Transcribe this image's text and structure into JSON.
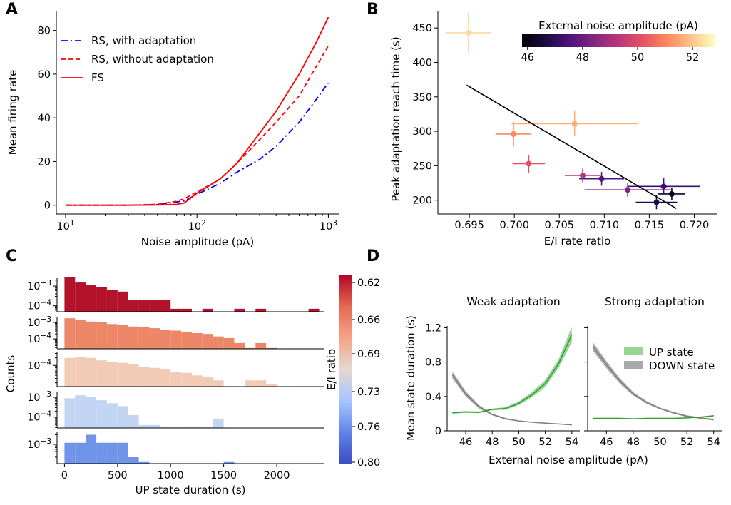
{
  "panels": {
    "A": {
      "letter": "A",
      "chart_data": {
        "type": "line",
        "xlabel": "Noise amplitude (pA)",
        "ylabel": "Mean firing rate",
        "xscale": "log",
        "xlim": [
          8.5,
          1200
        ],
        "ylim": [
          -4,
          89
        ],
        "xticks": [
          {
            "v": 10,
            "b": "10",
            "e": "1"
          },
          {
            "v": 100,
            "b": "10",
            "e": "2"
          },
          {
            "v": 1000,
            "b": "10",
            "e": "3"
          }
        ],
        "yticks": [
          0,
          20,
          40,
          60,
          80
        ],
        "legend": "upper left",
        "series": [
          {
            "name": "RS, with adaptation",
            "color": "#0000ff",
            "dash": "9 4 2 4",
            "x": [
              10,
              20,
              30,
              50,
              70,
              80,
              100,
              150,
              200,
              300,
              400,
              600,
              800,
              1000
            ],
            "y": [
              0,
              0,
              0,
              0.3,
              1.5,
              2.0,
              5.0,
              10.0,
              15.0,
              21.0,
              27.0,
              38.0,
              48.0,
              56.0
            ]
          },
          {
            "name": "RS, without adaptation",
            "color": "#ff0000",
            "dash": "6 4",
            "x": [
              10,
              20,
              30,
              50,
              70,
              80,
              100,
              150,
              200,
              300,
              400,
              600,
              800,
              1000
            ],
            "y": [
              0,
              0,
              0,
              0.4,
              1.8,
              3.0,
              6.0,
              12.0,
              19.0,
              30.0,
              38.0,
              50.0,
              63.0,
              73.0
            ]
          },
          {
            "name": "FS",
            "color": "#ff0000",
            "dash": "",
            "x": [
              10,
              20,
              30,
              50,
              70,
              80,
              100,
              150,
              200,
              300,
              400,
              600,
              800,
              1000
            ],
            "y": [
              0,
              0,
              0,
              0.1,
              0.4,
              1.0,
              5.5,
              12.0,
              19.0,
              33.0,
              43.0,
              60.0,
              74.0,
              86.0
            ]
          }
        ]
      }
    },
    "B": {
      "letter": "B",
      "chart_data": {
        "type": "scatter",
        "xlabel": "E/I rate ratio",
        "ylabel": "Peak adaptation reach time (s)",
        "xlim": [
          0.6915,
          0.7225
        ],
        "ylim": [
          180,
          475
        ],
        "xticks": [
          "0.695",
          "0.700",
          "0.705",
          "0.710",
          "0.715",
          "0.720"
        ],
        "yticks": [
          200,
          250,
          300,
          350,
          400,
          450
        ],
        "points": [
          {
            "noise": 46,
            "x": 0.7175,
            "y": 209,
            "xerr": 0.0015,
            "yerr": 9,
            "color": "#0d0422"
          },
          {
            "noise": 46.5,
            "x": 0.7158,
            "y": 197,
            "xerr": 0.0023,
            "yerr": 10,
            "color": "#1b0c41"
          },
          {
            "noise": 47,
            "x": 0.7166,
            "y": 220,
            "xerr": 0.004,
            "yerr": 12,
            "color": "#3b0f70"
          },
          {
            "noise": 48,
            "x": 0.7097,
            "y": 231,
            "xerr": 0.0025,
            "yerr": 10,
            "color": "#51127c"
          },
          {
            "noise": 48.5,
            "x": 0.7126,
            "y": 215,
            "xerr": 0.0048,
            "yerr": 10,
            "color": "#7e2482"
          },
          {
            "noise": 49,
            "x": 0.7076,
            "y": 236,
            "xerr": 0.002,
            "yerr": 10,
            "color": "#b5367a"
          },
          {
            "noise": 50,
            "x": 0.7016,
            "y": 253,
            "xerr": 0.0018,
            "yerr": 13,
            "color": "#e55064"
          },
          {
            "noise": 51,
            "x": 0.6999,
            "y": 296,
            "xerr": 0.002,
            "yerr": 18,
            "color": "#fb8861"
          },
          {
            "noise": 51.5,
            "x": 0.7067,
            "y": 311,
            "xerr": 0.007,
            "yerr": 18,
            "color": "#feb078"
          },
          {
            "noise": 52,
            "x": 0.6949,
            "y": 443,
            "xerr": 0.0025,
            "yerr": 30,
            "color": "#fcd8a0"
          }
        ],
        "fit_line": {
          "x": [
            0.6947,
            0.718
          ],
          "y": [
            367,
            188
          ],
          "color": "#000000"
        },
        "colorbar": {
          "title": "External noise amplitude (pA)",
          "ticks": [
            "46",
            "48",
            "50",
            "52"
          ],
          "range": [
            45.8,
            52.8
          ],
          "colors": [
            "#000004",
            "#1b0c41",
            "#51127c",
            "#822681",
            "#b73779",
            "#e65164",
            "#fb8861",
            "#fec287",
            "#fcfdbf"
          ]
        }
      }
    },
    "C": {
      "letter": "C",
      "chart_data": {
        "type": "bar",
        "xlabel": "UP state duration (s)",
        "ylabel": "Counts",
        "xlim": [
          -70,
          2450
        ],
        "xticks": [
          0,
          500,
          1000,
          1500,
          2000
        ],
        "bin_width": 100,
        "rows": [
          {
            "ylim_exp": [
              -4.3,
              -2.6
            ],
            "ticks": [
              {
                "e": -3
              },
              {
                "e": -4
              }
            ],
            "color": "#b2132b",
            "bins": [
              0,
              100,
              200,
              300,
              400,
              500,
              600,
              700,
              800,
              900,
              1000,
              1100,
              1300,
              1600,
              1800,
              2300
            ],
            "log_counts": [
              -2.55,
              -2.82,
              -2.95,
              -3.05,
              -3.18,
              -3.28,
              -3.7,
              -3.7,
              -3.7,
              -3.7,
              -4.15,
              -4.15,
              -4.15,
              -4.15,
              -4.15,
              -4.15
            ]
          },
          {
            "ylim_exp": [
              -4.6,
              -2.7
            ],
            "ticks": [
              {
                "e": -3
              },
              {
                "e": -4
              }
            ],
            "color": "#ec8767",
            "bins": [
              0,
              100,
              200,
              300,
              400,
              500,
              600,
              700,
              800,
              900,
              1000,
              1100,
              1200,
              1300,
              1400,
              1500,
              1600,
              1700,
              1800,
              1900
            ],
            "log_counts": [
              -2.75,
              -2.85,
              -2.95,
              -3.0,
              -3.1,
              -3.15,
              -3.25,
              -3.3,
              -3.35,
              -3.45,
              -3.5,
              -3.6,
              -3.65,
              -3.7,
              -3.85,
              -3.95,
              -4.25,
              -4.55,
              -4.25,
              -4.55
            ]
          },
          {
            "ylim_exp": [
              -4.85,
              -3.45
            ],
            "ticks": [
              {
                "e": -4
              }
            ],
            "color": "#f2cbb7",
            "bins": [
              0,
              100,
              200,
              300,
              400,
              500,
              600,
              700,
              800,
              900,
              1000,
              1100,
              1200,
              1300,
              1400,
              1700,
              1800,
              1900
            ],
            "log_counts": [
              -3.7,
              -3.65,
              -3.7,
              -3.8,
              -3.85,
              -3.9,
              -3.95,
              -4.05,
              -4.1,
              -4.15,
              -4.25,
              -4.3,
              -4.4,
              -4.45,
              -4.6,
              -4.6,
              -4.6,
              -4.75
            ]
          },
          {
            "ylim_exp": [
              -4.55,
              -2.75
            ],
            "ticks": [
              {
                "e": -3
              },
              {
                "e": -4
              }
            ],
            "color": "#c2d6f3",
            "bins": [
              0,
              100,
              200,
              300,
              400,
              500,
              600,
              700,
              800,
              900,
              1000,
              1100,
              1200,
              1300,
              1400
            ],
            "log_counts": [
              -3.05,
              -2.9,
              -3.0,
              -3.15,
              -3.3,
              -3.45,
              -3.9,
              -4.4,
              -4.4,
              -4.5,
              -4.5,
              -4.5,
              -4.5,
              -4.5,
              -4.1
            ]
          },
          {
            "ylim_exp": [
              -3.6,
              -2.6
            ],
            "ticks": [
              {
                "e": -3
              }
            ],
            "color": "#6f94e8",
            "bins": [
              0,
              100,
              200,
              300,
              400,
              500,
              600,
              700,
              1500
            ],
            "log_counts": [
              -2.95,
              -2.95,
              -2.7,
              -2.95,
              -2.95,
              -2.95,
              -3.4,
              -3.55,
              -3.55
            ]
          }
        ],
        "colorbar": {
          "label": "E/I ratio",
          "ticks": [
            "0.62",
            "0.66",
            "0.69",
            "0.73",
            "0.76",
            "0.80"
          ],
          "colors": [
            "#b40426",
            "#e26952",
            "#f6a385",
            "#e5d8d1",
            "#a6c4fe",
            "#6282ea",
            "#3b4cc0"
          ]
        }
      }
    },
    "D": {
      "letter": "D",
      "chart_data": {
        "type": "line",
        "xlabel": "External noise amplitude (pA)",
        "ylabel": "Mean state duration (s)",
        "xlim": [
          44.6,
          54.6
        ],
        "ylim": [
          0,
          1.22
        ],
        "xticks": [
          46,
          48,
          50,
          52,
          54
        ],
        "yticks": [
          "0",
          "0.4",
          "0.8",
          "1.2"
        ],
        "legend": [
          "UP state",
          "DOWN state"
        ],
        "subplots": [
          {
            "title": "Weak adaptation",
            "x": [
              45,
              46,
              47,
              48,
              49,
              50,
              51,
              52,
              53,
              54
            ],
            "up": [
              0.21,
              0.22,
              0.215,
              0.25,
              0.26,
              0.32,
              0.42,
              0.55,
              0.78,
              1.12
            ],
            "up_err": [
              0.01,
              0.01,
              0.01,
              0.01,
              0.015,
              0.02,
              0.03,
              0.04,
              0.05,
              0.09
            ],
            "down": [
              0.65,
              0.43,
              0.28,
              0.19,
              0.14,
              0.115,
              0.1,
              0.09,
              0.08,
              0.07
            ],
            "down_err": [
              0.04,
              0.03,
              0.02,
              0.01,
              0.01,
              0.005,
              0.005,
              0.005,
              0.005,
              0.005
            ]
          },
          {
            "title": "Strong adaptation",
            "x": [
              45,
              46,
              47,
              48,
              49,
              50,
              51,
              52,
              53,
              54
            ],
            "up": [
              0.145,
              0.145,
              0.145,
              0.14,
              0.145,
              0.145,
              0.145,
              0.15,
              0.16,
              0.175
            ],
            "up_err": [
              0.005,
              0.005,
              0.005,
              0.005,
              0.005,
              0.005,
              0.005,
              0.005,
              0.005,
              0.005
            ],
            "down": [
              0.98,
              0.77,
              0.58,
              0.43,
              0.33,
              0.26,
              0.21,
              0.17,
              0.15,
              0.13
            ],
            "down_err": [
              0.05,
              0.04,
              0.03,
              0.02,
              0.015,
              0.01,
              0.01,
              0.01,
              0.01,
              0.01
            ]
          }
        ],
        "colors": {
          "up_line": "#2ca02c",
          "up_band": "#98d494",
          "down_line": "#7f7f7f",
          "down_band": "#a9a9a9"
        }
      }
    }
  }
}
